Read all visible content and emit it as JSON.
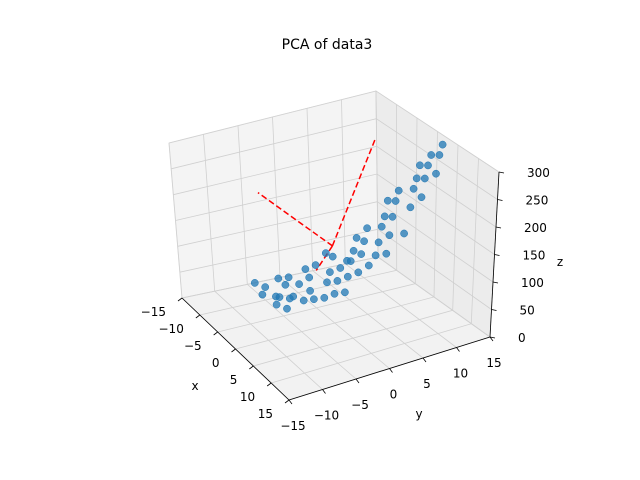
{
  "chart_data": {
    "type": "scatter",
    "title": "PCA of data3",
    "xlabel": "x",
    "ylabel": "y",
    "zlabel": "z",
    "xlim": [
      -15,
      15
    ],
    "ylim": [
      -15,
      15
    ],
    "zlim": [
      0,
      300
    ],
    "xticks": [
      "−15",
      "−10",
      "−5",
      "0",
      "5",
      "10",
      "15"
    ],
    "yticks": [
      "−15",
      "−10",
      "−5",
      "0",
      "5",
      "10",
      "15"
    ],
    "zticks": [
      "0",
      "50",
      "100",
      "150",
      "200",
      "250",
      "300"
    ],
    "grid": true,
    "marker_color": "#1f77b4",
    "pc_line_color": "#ff0000",
    "points": [
      [
        -7,
        -8,
        60
      ],
      [
        -6,
        -7,
        55
      ],
      [
        -5,
        -8,
        50
      ],
      [
        -4,
        -6,
        45
      ],
      [
        -6,
        -5,
        65
      ],
      [
        -3,
        -7,
        40
      ],
      [
        -2,
        -5,
        55
      ],
      [
        -5,
        -4,
        70
      ],
      [
        -4,
        -3,
        60
      ],
      [
        -2,
        -6,
        35
      ],
      [
        -1,
        -4,
        50
      ],
      [
        -3,
        -2,
        75
      ],
      [
        -1,
        -3,
        65
      ],
      [
        0,
        -3,
        55
      ],
      [
        1,
        -2,
        60
      ],
      [
        0,
        -1,
        80
      ],
      [
        2,
        -1,
        70
      ],
      [
        -1,
        0,
        90
      ],
      [
        1,
        0,
        85
      ],
      [
        3,
        0,
        75
      ],
      [
        0,
        1,
        100
      ],
      [
        2,
        1,
        95
      ],
      [
        -2,
        1,
        110
      ],
      [
        1,
        2,
        115
      ],
      [
        3,
        2,
        105
      ],
      [
        0,
        3,
        125
      ],
      [
        2,
        3,
        130
      ],
      [
        4,
        3,
        120
      ],
      [
        -1,
        4,
        140
      ],
      [
        1,
        4,
        145
      ],
      [
        3,
        5,
        150
      ],
      [
        0,
        5,
        160
      ],
      [
        2,
        6,
        170
      ],
      [
        4,
        6,
        165
      ],
      [
        1,
        7,
        180
      ],
      [
        3,
        7,
        190
      ],
      [
        0,
        8,
        200
      ],
      [
        2,
        8,
        210
      ],
      [
        4,
        9,
        205
      ],
      [
        1,
        9,
        220
      ],
      [
        3,
        10,
        230
      ],
      [
        5,
        10,
        225
      ],
      [
        2,
        11,
        240
      ],
      [
        4,
        11,
        250
      ],
      [
        1,
        12,
        255
      ],
      [
        3,
        12,
        265
      ],
      [
        5,
        12,
        260
      ],
      [
        2,
        13,
        275
      ],
      [
        4,
        13,
        285
      ],
      [
        3,
        14,
        295
      ],
      [
        -4,
        -2,
        85
      ],
      [
        -3,
        -1,
        95
      ],
      [
        -2,
        0,
        120
      ],
      [
        5,
        5,
        140
      ],
      [
        6,
        7,
        175
      ],
      [
        -5,
        -6,
        40
      ],
      [
        -6,
        -4,
        50
      ],
      [
        -3,
        -5,
        45
      ],
      [
        4,
        4,
        135
      ],
      [
        0,
        2,
        110
      ]
    ],
    "principal_axes": [
      {
        "from": [
          -2,
          1,
          130
        ],
        "to": [
          -20,
          0,
          130
        ]
      },
      {
        "from": [
          -2,
          1,
          130
        ],
        "to": [
          -10,
          12,
          250
        ]
      },
      {
        "from": [
          -2,
          1,
          130
        ],
        "to": [
          -1,
          -2,
          100
        ]
      }
    ]
  }
}
